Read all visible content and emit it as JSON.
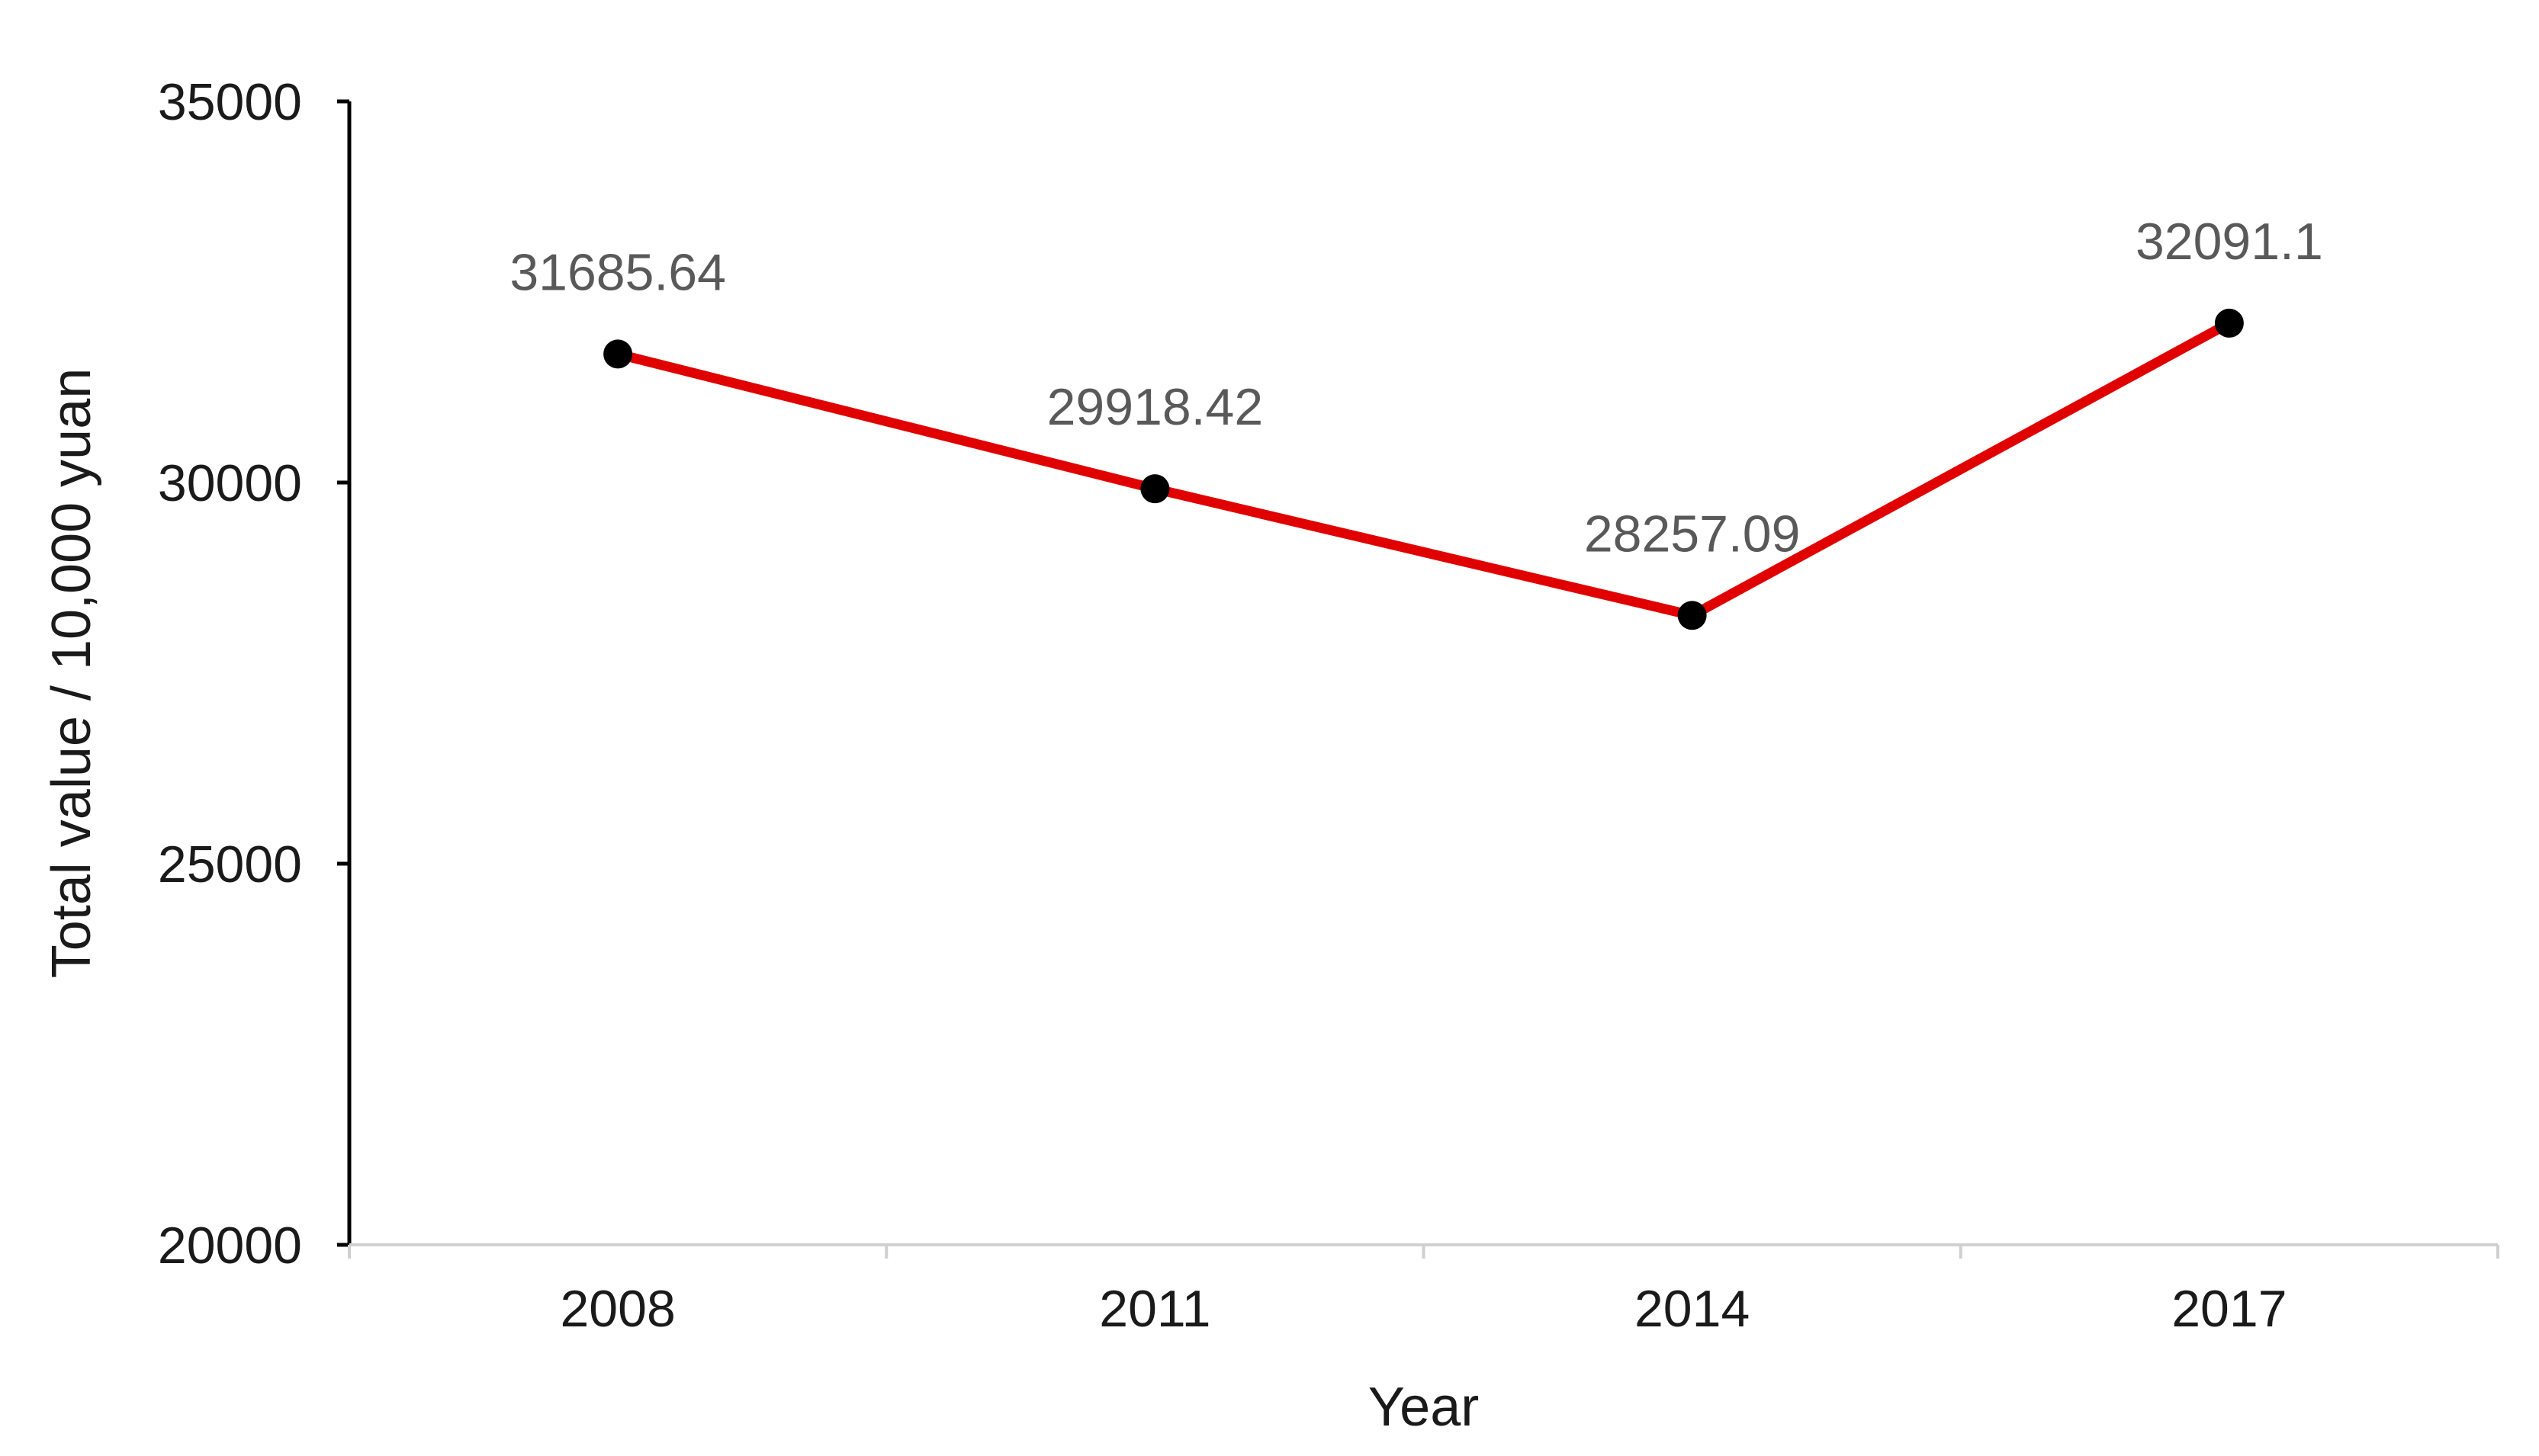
{
  "chart_data": {
    "type": "line",
    "categories": [
      "2008",
      "2011",
      "2014",
      "2017"
    ],
    "series": [
      {
        "values": [
          31685.64,
          29918.42,
          28257.09,
          32091.1
        ],
        "data_labels": [
          "31685.64",
          "29918.42",
          "28257.09",
          "32091.1"
        ],
        "line_color": "#e00000",
        "marker_color": "#000000"
      }
    ],
    "xlabel": "Year",
    "ylabel": "Total value / 10,000 yuan",
    "ylim": [
      20000,
      35000
    ],
    "yticks": [
      "20000",
      "25000",
      "30000",
      "35000"
    ],
    "grid": false,
    "legend": "none"
  }
}
